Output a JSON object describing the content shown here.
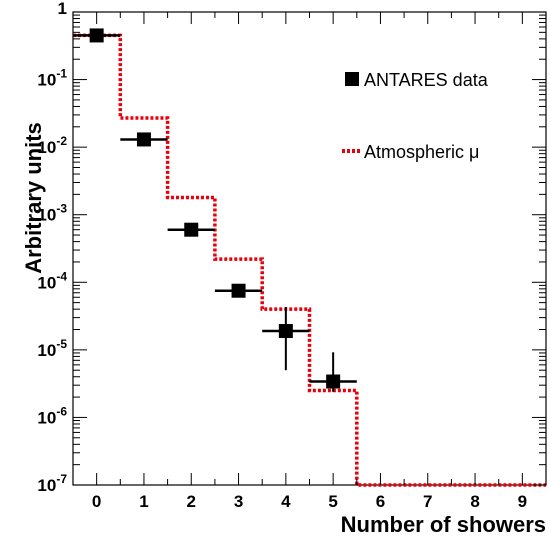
{
  "chart_data": {
    "type": "scatter",
    "xlabel": "Number of showers",
    "ylabel": "Arbitrary units",
    "xlim": [
      -0.5,
      9.5
    ],
    "ylim": [
      1e-07,
      1
    ],
    "log_y": true,
    "grid": false,
    "legend_position": "top-right",
    "x_ticks": [
      "0",
      "1",
      "2",
      "3",
      "4",
      "5",
      "6",
      "7",
      "8",
      "9"
    ],
    "y_ticks": [
      {
        "mant": "10",
        "exp": "-7"
      },
      {
        "mant": "10",
        "exp": "-6"
      },
      {
        "mant": "10",
        "exp": "-5"
      },
      {
        "mant": "10",
        "exp": "-4"
      },
      {
        "mant": "10",
        "exp": "-3"
      },
      {
        "mant": "10",
        "exp": "-2"
      },
      {
        "mant": "10",
        "exp": "-1"
      },
      {
        "mant": "1",
        "exp": ""
      }
    ],
    "series": [
      {
        "name": "ANTARES data",
        "style": "markers-with-errorbars",
        "color": "#000000",
        "x": [
          0,
          1,
          2,
          3,
          4,
          5
        ],
        "y": [
          0.45,
          0.013,
          0.0006,
          7.5e-05,
          1.9e-05,
          3.4e-06
        ],
        "y_err_low": [
          0.45,
          0.013,
          0.0006,
          7.5e-05,
          1.4e-05,
          1e-06
        ],
        "y_err_high": [
          0.45,
          0.013,
          0.0006,
          7.5e-05,
          2.4e-05,
          5.8e-06
        ]
      },
      {
        "name": "Atmospheric μ",
        "style": "dotted-step",
        "color": "#e8000b",
        "x": [
          0,
          1,
          2,
          3,
          4,
          5,
          6,
          7,
          8,
          9
        ],
        "y": [
          0.45,
          0.027,
          0.0018,
          0.00022,
          4e-05,
          2.5e-06,
          1e-07,
          1e-07,
          1e-07,
          1e-07
        ]
      }
    ]
  }
}
